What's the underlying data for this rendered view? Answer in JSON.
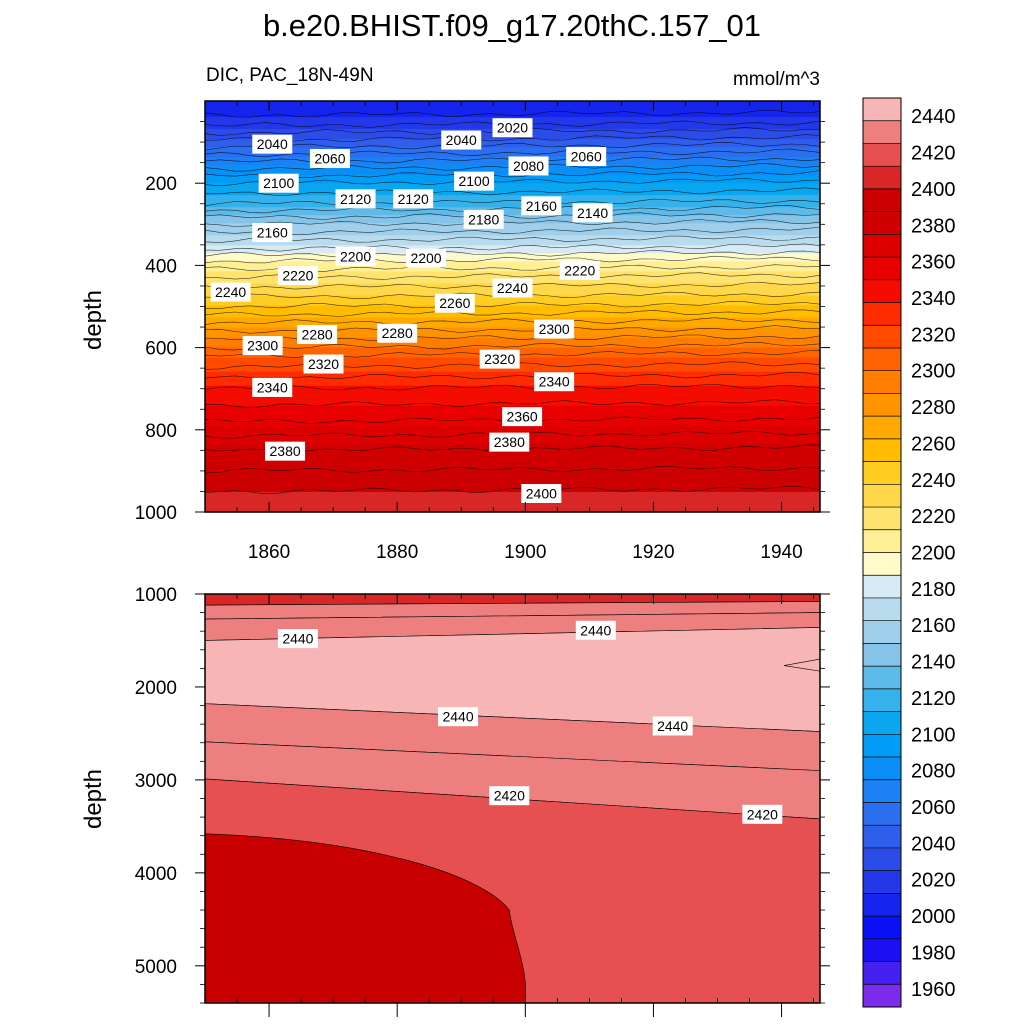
{
  "title": "b.e20.BHIST.f09_g17.20thC.157_01",
  "variable_label": "DIC, PAC_18N-49N",
  "units_label": "mmol/m^3",
  "chart_data": [
    {
      "type": "contour",
      "panel": "upper",
      "ylabel": "depth",
      "xlabel": "",
      "xlim": [
        1850,
        1946
      ],
      "ylim": [
        1000,
        0
      ],
      "x_ticks": [
        1860,
        1880,
        1900,
        1920,
        1940
      ],
      "y_ticks": [
        200,
        400,
        600,
        800,
        1000
      ],
      "levels": [
        1960,
        1980,
        2000,
        2020,
        2040,
        2060,
        2080,
        2100,
        2120,
        2140,
        2160,
        2180,
        2200,
        2220,
        2240,
        2260,
        2280,
        2300,
        2320,
        2340,
        2360,
        2380,
        2400,
        2420,
        2440
      ],
      "contour_depth_profile": [
        {
          "depth": 10,
          "value": 2000
        },
        {
          "depth": 60,
          "value": 2020
        },
        {
          "depth": 130,
          "value": 2060
        },
        {
          "depth": 200,
          "value": 2100
        },
        {
          "depth": 250,
          "value": 2120
        },
        {
          "depth": 300,
          "value": 2150
        },
        {
          "depth": 360,
          "value": 2180
        },
        {
          "depth": 390,
          "value": 2200
        },
        {
          "depth": 430,
          "value": 2220
        },
        {
          "depth": 500,
          "value": 2250
        },
        {
          "depth": 560,
          "value": 2280
        },
        {
          "depth": 620,
          "value": 2310
        },
        {
          "depth": 700,
          "value": 2340
        },
        {
          "depth": 780,
          "value": 2360
        },
        {
          "depth": 850,
          "value": 2380
        },
        {
          "depth": 950,
          "value": 2400
        },
        {
          "depth": 1000,
          "value": 2405
        }
      ],
      "contour_labels": [
        {
          "x": 1860.5,
          "depth": 105,
          "text": "2040"
        },
        {
          "x": 1869.5,
          "depth": 140,
          "text": "2060"
        },
        {
          "x": 1861.5,
          "depth": 200,
          "text": "2100"
        },
        {
          "x": 1873.5,
          "depth": 238,
          "text": "2120"
        },
        {
          "x": 1882.5,
          "depth": 238,
          "text": "2120"
        },
        {
          "x": 1892,
          "depth": 195,
          "text": "2100"
        },
        {
          "x": 1890,
          "depth": 95,
          "text": "2040"
        },
        {
          "x": 1898,
          "depth": 65,
          "text": "2020"
        },
        {
          "x": 1900.5,
          "depth": 158,
          "text": "2080"
        },
        {
          "x": 1909.5,
          "depth": 135,
          "text": "2060"
        },
        {
          "x": 1910.5,
          "depth": 272,
          "text": "2140"
        },
        {
          "x": 1902.5,
          "depth": 255,
          "text": "2160"
        },
        {
          "x": 1893.5,
          "depth": 288,
          "text": "2180"
        },
        {
          "x": 1860.5,
          "depth": 320,
          "text": "2160"
        },
        {
          "x": 1873.5,
          "depth": 378,
          "text": "2200"
        },
        {
          "x": 1884.5,
          "depth": 382,
          "text": "2200"
        },
        {
          "x": 1908.5,
          "depth": 412,
          "text": "2220"
        },
        {
          "x": 1864.5,
          "depth": 425,
          "text": "2220"
        },
        {
          "x": 1854,
          "depth": 465,
          "text": "2240"
        },
        {
          "x": 1898,
          "depth": 455,
          "text": "2240"
        },
        {
          "x": 1889,
          "depth": 492,
          "text": "2260"
        },
        {
          "x": 1867.5,
          "depth": 568,
          "text": "2280"
        },
        {
          "x": 1880,
          "depth": 565,
          "text": "2280"
        },
        {
          "x": 1904.5,
          "depth": 555,
          "text": "2300"
        },
        {
          "x": 1859,
          "depth": 595,
          "text": "2300"
        },
        {
          "x": 1868.5,
          "depth": 640,
          "text": "2320"
        },
        {
          "x": 1896,
          "depth": 628,
          "text": "2320"
        },
        {
          "x": 1904.5,
          "depth": 683,
          "text": "2340"
        },
        {
          "x": 1860.5,
          "depth": 697,
          "text": "2340"
        },
        {
          "x": 1899.5,
          "depth": 768,
          "text": "2360"
        },
        {
          "x": 1862.5,
          "depth": 852,
          "text": "2380"
        },
        {
          "x": 1897.5,
          "depth": 830,
          "text": "2380"
        },
        {
          "x": 1902.5,
          "depth": 955,
          "text": "2400"
        }
      ]
    },
    {
      "type": "contour",
      "panel": "lower",
      "ylabel": "depth",
      "xlabel": "",
      "xlim": [
        1850,
        1946
      ],
      "ylim": [
        1000,
        5400
      ],
      "y_ticks": [
        1000,
        2000,
        3000,
        4000,
        5000
      ],
      "contour_labels": [
        {
          "x": 1864.5,
          "depth": 1480,
          "text": "2440"
        },
        {
          "x": 1911,
          "depth": 1390,
          "text": "2440"
        },
        {
          "x": 1889.5,
          "depth": 2320,
          "text": "2440"
        },
        {
          "x": 1923,
          "depth": 2420,
          "text": "2440"
        },
        {
          "x": 1897.5,
          "depth": 3170,
          "text": "2420"
        },
        {
          "x": 1937,
          "depth": 3370,
          "text": "2420"
        }
      ]
    }
  ],
  "colorbar": {
    "labels": [
      "2440",
      "2420",
      "2400",
      "2380",
      "2360",
      "2340",
      "2320",
      "2300",
      "2280",
      "2260",
      "2240",
      "2220",
      "2200",
      "2180",
      "2160",
      "2140",
      "2120",
      "2100",
      "2080",
      "2060",
      "2040",
      "2020",
      "2000",
      "1980",
      "1960"
    ],
    "colors_top_to_bottom": [
      "#f7b5b5",
      "#ee7f7f",
      "#e65050",
      "#d92727",
      "#cc0000",
      "#d10000",
      "#dc0000",
      "#e80000",
      "#f40c00",
      "#fe2c00",
      "#ff4a00",
      "#ff6400",
      "#ff7d00",
      "#ff9300",
      "#ffa800",
      "#ffbc00",
      "#ffcc22",
      "#ffd84a",
      "#ffe36f",
      "#fff095",
      "#fffac8",
      "#d8eaf4",
      "#b8dcee",
      "#9fcfea",
      "#85c4e8",
      "#5ebae8",
      "#35b1ec",
      "#0aa6f0",
      "#009cf5",
      "#0a8ff6",
      "#1d80f4",
      "#2a6ff0",
      "#2f5eec",
      "#2c4ce8",
      "#2338e8",
      "#1525ee",
      "#0a12f5",
      "#1a10f2",
      "#4520ee",
      "#7a2cea"
    ]
  }
}
